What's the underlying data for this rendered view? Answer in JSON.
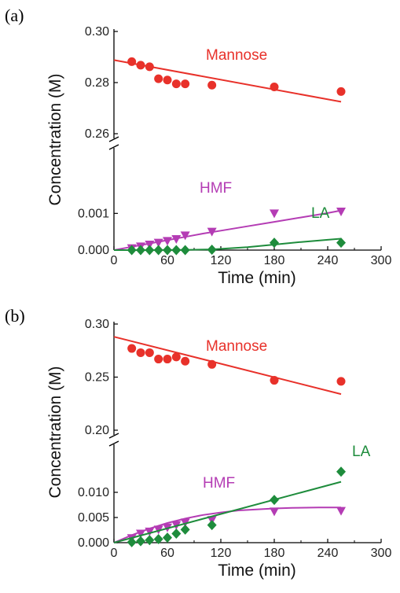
{
  "chart_data": [
    {
      "type": "scatter",
      "panel_label": "(a)",
      "xlabel": "Time (min)",
      "ylabel": "Concentration (M)",
      "xlim": [
        0,
        300
      ],
      "x_ticks": [
        0,
        60,
        120,
        180,
        240,
        300
      ],
      "broken_axis": true,
      "upper": {
        "ylim": [
          0.26,
          0.3
        ],
        "ticks": [
          "0.26",
          "0.28",
          "0.30"
        ]
      },
      "lower": {
        "ylim": [
          0,
          0.0015
        ],
        "ticks": [
          "0.000",
          "0.001"
        ]
      },
      "series": [
        {
          "name": "Mannose",
          "segment": "upper",
          "color": "#e8312a",
          "marker": "circle",
          "x": [
            20,
            30,
            40,
            50,
            60,
            70,
            80,
            110,
            180,
            255
          ],
          "y": [
            0.2882,
            0.2868,
            0.2862,
            0.2815,
            0.281,
            0.2795,
            0.2795,
            0.279,
            0.2783,
            0.2765
          ],
          "fit_x": [
            0,
            255
          ],
          "fit_y": [
            0.2888,
            0.2725
          ]
        },
        {
          "name": "HMF",
          "segment": "lower",
          "color": "#b43cb4",
          "marker": "triangle-down",
          "x": [
            20,
            30,
            40,
            50,
            60,
            70,
            80,
            110,
            180,
            255
          ],
          "y": [
            5e-05,
            0.0001,
            0.00015,
            0.0002,
            0.00025,
            0.0003,
            0.0004,
            0.0005,
            0.001,
            0.00105
          ],
          "fit_x": [
            0,
            20,
            40,
            60,
            80,
            100,
            120,
            150,
            180,
            210,
            240,
            255
          ],
          "fit_y": [
            0,
            9e-05,
            0.00018,
            0.00027,
            0.00036,
            0.00045,
            0.00053,
            0.00065,
            0.00077,
            0.00089,
            0.00101,
            0.00108
          ]
        },
        {
          "name": "LA",
          "segment": "lower",
          "color": "#1e8c3c",
          "marker": "diamond",
          "x": [
            20,
            30,
            40,
            50,
            60,
            70,
            80,
            110,
            180,
            255
          ],
          "y": [
            0,
            0,
            0,
            0,
            0,
            0,
            0,
            1e-05,
            0.0002,
            0.0002
          ],
          "fit_x": [
            0,
            40,
            80,
            110,
            150,
            180,
            210,
            240,
            255
          ],
          "fit_y": [
            0,
            0,
            5e-06,
            2e-05,
            8e-05,
            0.00015,
            0.00022,
            0.00028,
            0.00031
          ]
        }
      ]
    },
    {
      "type": "scatter",
      "panel_label": "(b)",
      "xlabel": "Time (min)",
      "ylabel": "Concentration (M)",
      "xlim": [
        0,
        300
      ],
      "x_ticks": [
        0,
        60,
        120,
        180,
        240,
        300
      ],
      "broken_axis": true,
      "upper": {
        "ylim": [
          0.2,
          0.3
        ],
        "ticks": [
          "0.20",
          "0.25",
          "0.30"
        ]
      },
      "lower": {
        "ylim": [
          0,
          0.015
        ],
        "ticks": [
          "0.000",
          "0.005",
          "0.010"
        ]
      },
      "series": [
        {
          "name": "Mannose",
          "segment": "upper",
          "color": "#e8312a",
          "marker": "circle",
          "x": [
            20,
            30,
            40,
            50,
            60,
            70,
            80,
            110,
            180,
            255
          ],
          "y": [
            0.277,
            0.273,
            0.273,
            0.267,
            0.267,
            0.269,
            0.265,
            0.262,
            0.247,
            0.246
          ],
          "fit_x": [
            0,
            255
          ],
          "fit_y": [
            0.288,
            0.234
          ]
        },
        {
          "name": "HMF",
          "segment": "lower",
          "color": "#b43cb4",
          "marker": "triangle-down",
          "x": [
            20,
            30,
            40,
            50,
            60,
            70,
            80,
            110,
            180,
            255
          ],
          "y": [
            0.0009,
            0.0018,
            0.0022,
            0.0026,
            0.003,
            0.0035,
            0.004,
            0.0045,
            0.0062,
            0.0063
          ],
          "fit_x": [
            0,
            20,
            40,
            60,
            80,
            100,
            120,
            140,
            160,
            180,
            200,
            230,
            255
          ],
          "fit_y": [
            0,
            0.0015,
            0.0028,
            0.0039,
            0.0048,
            0.0055,
            0.006,
            0.0064,
            0.0066,
            0.0068,
            0.0069,
            0.007,
            0.007
          ]
        },
        {
          "name": "LA",
          "segment": "lower",
          "color": "#1e8c3c",
          "marker": "diamond",
          "x": [
            20,
            30,
            40,
            50,
            60,
            70,
            80,
            110,
            180,
            255
          ],
          "y": [
            0.0001,
            0.0003,
            0.0005,
            0.0007,
            0.001,
            0.0018,
            0.0026,
            0.0035,
            0.0085,
            0.0141
          ],
          "fit_x": [
            0,
            255
          ],
          "fit_y": [
            0,
            0.0121
          ]
        }
      ]
    }
  ]
}
